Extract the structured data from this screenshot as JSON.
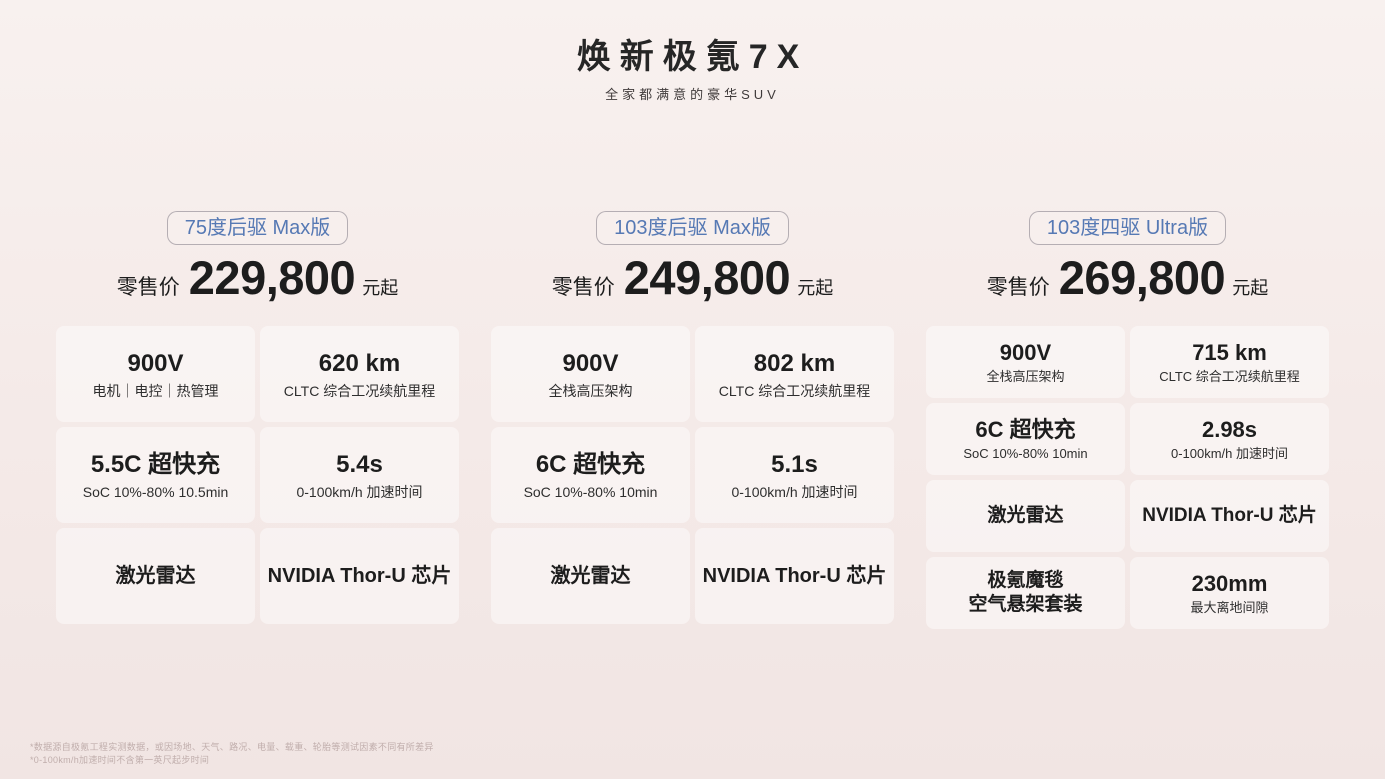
{
  "page": {
    "title": "焕新极氪7X",
    "subtitle": "全家都满意的豪华SUV"
  },
  "colors": {
    "background_top": "#f8f1ef",
    "background_bottom": "#f1e5e3",
    "card_background": "#f6edec",
    "badge_text": "#5679b4",
    "badge_border": "#8d8894",
    "text_primary": "#1d1d1d",
    "footnote_text": "#c0aeac"
  },
  "price": {
    "prefix": "零售价",
    "suffix": "元起"
  },
  "trims": [
    {
      "badge": "75度后驱 Max版",
      "price_value": "229,800",
      "cards": [
        {
          "value": "900V",
          "label": "电机｜电控｜热管理"
        },
        {
          "value": "620 km",
          "label": "CLTC 综合工况续航里程"
        },
        {
          "value": "5.5C 超快充",
          "label": "SoC 10%-80% 10.5min"
        },
        {
          "value": "5.4s",
          "label": "0-100km/h 加速时间"
        },
        {
          "value": "激光雷达"
        },
        {
          "value": "NVIDIA Thor-U 芯片"
        }
      ]
    },
    {
      "badge": "103度后驱 Max版",
      "price_value": "249,800",
      "cards": [
        {
          "value": "900V",
          "label": "全栈高压架构"
        },
        {
          "value": "802 km",
          "label": "CLTC 综合工况续航里程"
        },
        {
          "value": "6C 超快充",
          "label": "SoC 10%-80% 10min"
        },
        {
          "value": "5.1s",
          "label": "0-100km/h 加速时间"
        },
        {
          "value": "激光雷达"
        },
        {
          "value": "NVIDIA Thor-U 芯片"
        }
      ]
    },
    {
      "badge": "103度四驱 Ultra版",
      "price_value": "269,800",
      "cards": [
        {
          "value": "900V",
          "label": "全栈高压架构"
        },
        {
          "value": "715 km",
          "label": "CLTC 综合工况续航里程"
        },
        {
          "value": "6C 超快充",
          "label": "SoC 10%-80% 10min"
        },
        {
          "value": "2.98s",
          "label": "0-100km/h 加速时间"
        },
        {
          "value": "激光雷达"
        },
        {
          "value": "NVIDIA Thor-U 芯片"
        },
        {
          "value": "极氪魔毯\n空气悬架套装"
        },
        {
          "value": "230mm",
          "label": "最大离地间隙"
        }
      ]
    }
  ],
  "footnotes": [
    "*数据源自极氪工程实测数据，或因场地、天气、路况、电量、载重、轮胎等测试因素不同有所差异",
    "*0-100km/h加速时间不含第一英尺起步时间"
  ]
}
